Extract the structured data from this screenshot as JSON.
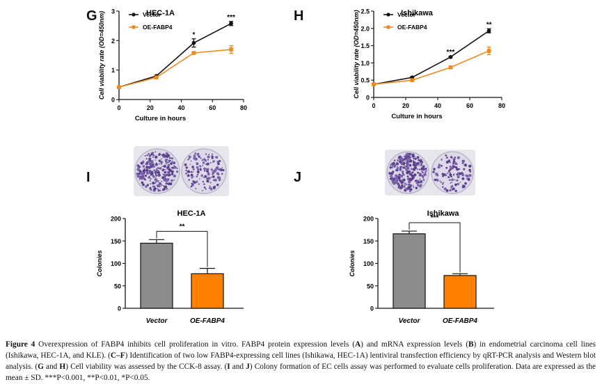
{
  "panels": {
    "G": "G",
    "H": "H",
    "I": "I",
    "J": "J"
  },
  "chart_data": [
    {
      "panel": "G",
      "type": "line",
      "title": "HEC-1A",
      "xlabel": "Culture in hours",
      "ylabel": "Cell viability rate (OD=450nm)",
      "xlim": [
        0,
        80
      ],
      "ylim": [
        0,
        3
      ],
      "xticks": [
        "0",
        "20",
        "40",
        "60",
        "80"
      ],
      "yticks": [
        "0",
        "1",
        "2",
        "3"
      ],
      "x": [
        0,
        24,
        48,
        72
      ],
      "series": [
        {
          "name": "Vector",
          "color": "#111111",
          "values": [
            0.42,
            0.8,
            1.92,
            2.58
          ],
          "err": [
            0.03,
            0.03,
            0.14,
            0.07
          ]
        },
        {
          "name": "OE-FABP4",
          "color": "#f08a1c",
          "values": [
            0.42,
            0.75,
            1.58,
            1.7
          ],
          "err": [
            0.03,
            0.03,
            0.03,
            0.13
          ]
        }
      ],
      "significance": [
        {
          "x": 48,
          "label": "*"
        },
        {
          "x": 72,
          "label": "***"
        }
      ],
      "legend": "top-left"
    },
    {
      "panel": "H",
      "type": "line",
      "title": "Ishikawa",
      "xlabel": "Culture in hours",
      "ylabel": "Cell viability rate (OD=450nm)",
      "xlim": [
        0,
        80
      ],
      "ylim": [
        0,
        2.5
      ],
      "xticks": [
        "0",
        "20",
        "40",
        "60",
        "80"
      ],
      "yticks": [
        "0",
        "0.5",
        "1.0",
        "1.5",
        "2.0",
        "2.5"
      ],
      "x": [
        0,
        24,
        48,
        72
      ],
      "series": [
        {
          "name": "Vector",
          "color": "#111111",
          "values": [
            0.38,
            0.58,
            1.17,
            1.93
          ],
          "err": [
            0.02,
            0.02,
            0.02,
            0.06
          ]
        },
        {
          "name": "OE-FABP4",
          "color": "#f08a1c",
          "values": [
            0.38,
            0.5,
            0.87,
            1.35
          ],
          "err": [
            0.02,
            0.02,
            0.02,
            0.11
          ]
        }
      ],
      "significance": [
        {
          "x": 48,
          "label": "***"
        },
        {
          "x": 72,
          "label": "**"
        }
      ],
      "legend": "top-left"
    },
    {
      "panel": "I",
      "type": "bar",
      "title": "HEC-1A",
      "xlabel": "",
      "ylabel": "Colonies",
      "ylim": [
        0,
        200
      ],
      "yticks": [
        "0",
        "50",
        "100",
        "150",
        "200"
      ],
      "categories": [
        "Vector",
        "OE-FABP4"
      ],
      "values": [
        145,
        77
      ],
      "err": [
        8,
        12
      ],
      "colors": [
        "#8c8c8c",
        "#ff7f00"
      ],
      "significance": "**"
    },
    {
      "panel": "J",
      "type": "bar",
      "title": "Ishikawa",
      "xlabel": "",
      "ylabel": "Colonies",
      "ylim": [
        0,
        200
      ],
      "yticks": [
        "0",
        "50",
        "100",
        "150",
        "200"
      ],
      "categories": [
        "Vector",
        "OE-FABP4"
      ],
      "values": [
        166,
        73
      ],
      "err": [
        6,
        4
      ],
      "colors": [
        "#8c8c8c",
        "#ff7f00"
      ],
      "significance": "***"
    }
  ],
  "caption": {
    "fig": "Figure 4",
    "text1": " Overexpression of FABP4 inhibits cell proliferation in vitro. FABP4 protein expression levels (",
    "A": "A",
    "text2": ") and mRNA expression levels (",
    "B": "B",
    "text3": ") in endometrial carcinoma cell lines (Ishikawa, HEC-1A, and KLE). (",
    "CF": "C–F",
    "text4": ") Identification of two low FABP4-expressing cell lines (Ishikawa, HEC-1A) lentiviral transfection efficiency by qRT-PCR analysis and Western blot analysis. (",
    "GH": "G",
    "and1": " and ",
    "H": "H",
    "text5": ") Cell viability was assessed by the CCK-8 assay. (",
    "I": "I",
    "and2": " and ",
    "J": "J",
    "text6": ") Colony formation of EC cells assay was performed to evaluate cells proliferation. Data are expressed as the mean ± SD. ***P<0.001, **P<0.01, *P<0.05."
  }
}
